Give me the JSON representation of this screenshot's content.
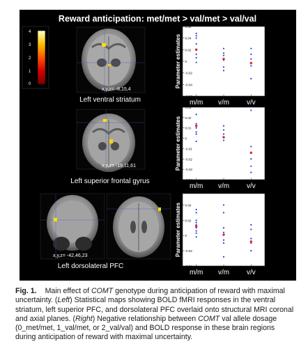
{
  "figure": {
    "title": "Reward anticipation: met/met > val/met > val/val",
    "colorbar": {
      "ticks": [
        "4",
        "3",
        "2",
        "1",
        "0"
      ]
    },
    "panels": [
      {
        "coord_label": "x,y,z= -8,15,4",
        "region_label": "Left ventral striatum"
      },
      {
        "coord_label": "x,y,z= -19,11,61",
        "region_label": "Left superior frontal gyrus"
      },
      {
        "coord_label": "x,y,z= -42,46,23",
        "region_label": "Left dorsolateral PFC"
      }
    ]
  },
  "chart_data": [
    {
      "type": "scatter",
      "title": "",
      "xlabel": "",
      "ylabel": "Parameter estimates",
      "categories": [
        "m/m",
        "v/m",
        "v/v"
      ],
      "yticks": [
        "0.06",
        "0.04",
        "0.02",
        "0",
        "-0.02",
        "-0.04",
        "-0.06"
      ],
      "ylim": [
        -0.06,
        0.06
      ],
      "series": [
        {
          "name": "",
          "color": "#2b3bd6",
          "points": [
            [
              1,
              0.048
            ],
            [
              1,
              0.044
            ],
            [
              1,
              0.04
            ],
            [
              1,
              0.03
            ],
            [
              1,
              0.012
            ],
            [
              1,
              0.006
            ],
            [
              1,
              -0.002
            ],
            [
              2,
              0.022
            ],
            [
              2,
              0.014
            ],
            [
              2,
              0.01
            ],
            [
              2,
              0.002
            ],
            [
              2,
              -0.01
            ],
            [
              2,
              -0.016
            ],
            [
              3,
              0.022
            ],
            [
              3,
              0.012
            ],
            [
              3,
              0.004
            ],
            [
              3,
              -0.004
            ],
            [
              3,
              -0.008
            ],
            [
              3,
              -0.03
            ]
          ]
        },
        {
          "name": "",
          "color": "#e02424",
          "points": [
            [
              1,
              0.02
            ],
            [
              2,
              0.004
            ],
            [
              3,
              -0.003
            ]
          ]
        }
      ]
    },
    {
      "type": "scatter",
      "title": "",
      "xlabel": "",
      "ylabel": "Parameter estimates",
      "categories": [
        "m/m",
        "v/m",
        "v/v"
      ],
      "yticks": [
        "0.03",
        "0.02",
        "0.01",
        "0",
        "-0.01",
        "-0.02",
        "-0.03",
        "-0.04"
      ],
      "ylim": [
        -0.04,
        0.03
      ],
      "series": [
        {
          "name": "",
          "color": "#2b3bd6",
          "points": [
            [
              1,
              0.023
            ],
            [
              1,
              0.014
            ],
            [
              1,
              0.01
            ],
            [
              1,
              0.006
            ],
            [
              1,
              0.004
            ],
            [
              1,
              -0.003
            ],
            [
              2,
              0.012
            ],
            [
              2,
              0.008
            ],
            [
              2,
              0.004
            ],
            [
              2,
              0.001
            ],
            [
              2,
              -0.002
            ],
            [
              3,
              0.027
            ],
            [
              3,
              -0.008
            ],
            [
              3,
              -0.014
            ],
            [
              3,
              -0.02
            ],
            [
              3,
              -0.027
            ],
            [
              3,
              -0.033
            ]
          ]
        },
        {
          "name": "",
          "color": "#e02424",
          "points": [
            [
              1,
              0.012
            ],
            [
              2,
              0.001
            ],
            [
              3,
              -0.014
            ]
          ]
        }
      ]
    },
    {
      "type": "scatter",
      "title": "",
      "xlabel": "",
      "ylabel": "Parameter estimates",
      "categories": [
        "m/m",
        "v/m",
        "v/v"
      ],
      "yticks": [
        "0.04",
        "0.02",
        "0",
        "-0.02",
        "-0.04"
      ],
      "ylim": [
        -0.04,
        0.055
      ],
      "series": [
        {
          "name": "",
          "color": "#2b3bd6",
          "points": [
            [
              1,
              0.034
            ],
            [
              1,
              0.03
            ],
            [
              1,
              0.02
            ],
            [
              1,
              0.017
            ],
            [
              1,
              0.014
            ],
            [
              1,
              0.01
            ],
            [
              1,
              0.006
            ],
            [
              1,
              0.003
            ],
            [
              1,
              -0.002
            ],
            [
              2,
              0.04
            ],
            [
              2,
              0.03
            ],
            [
              2,
              0.01
            ],
            [
              2,
              0.004
            ],
            [
              2,
              -0.006
            ],
            [
              2,
              -0.01
            ],
            [
              2,
              -0.028
            ],
            [
              3,
              0.014
            ],
            [
              3,
              0.008
            ],
            [
              3,
              -0.004
            ],
            [
              3,
              -0.01
            ],
            [
              3,
              -0.02
            ]
          ]
        },
        {
          "name": "",
          "color": "#e02424",
          "points": [
            [
              1,
              0.012
            ],
            [
              2,
              0.001
            ],
            [
              3,
              -0.008
            ]
          ]
        }
      ]
    }
  ],
  "caption": {
    "fig_label": "Fig. 1.",
    "heading_pre": "Main effect of ",
    "heading_gene": "COMT",
    "heading_post": " genotype during anticipation of reward with maximal uncertainty. (",
    "left_word": "Left",
    "left_text": ") Statistical maps showing BOLD fMRI responses in the ventral striatum, left superior PFC, and dorsolateral PFC overlaid onto structural MRI coronal and axial planes. (",
    "right_word": "Right",
    "right_text_pre": ") Negative relationship between ",
    "right_gene": "COMT",
    "right_text_post": " val allele dosage (0_met/met, 1_val/met, or 2_val/val) and BOLD response in these brain regions during anticipation of reward with maximal uncertainty."
  }
}
